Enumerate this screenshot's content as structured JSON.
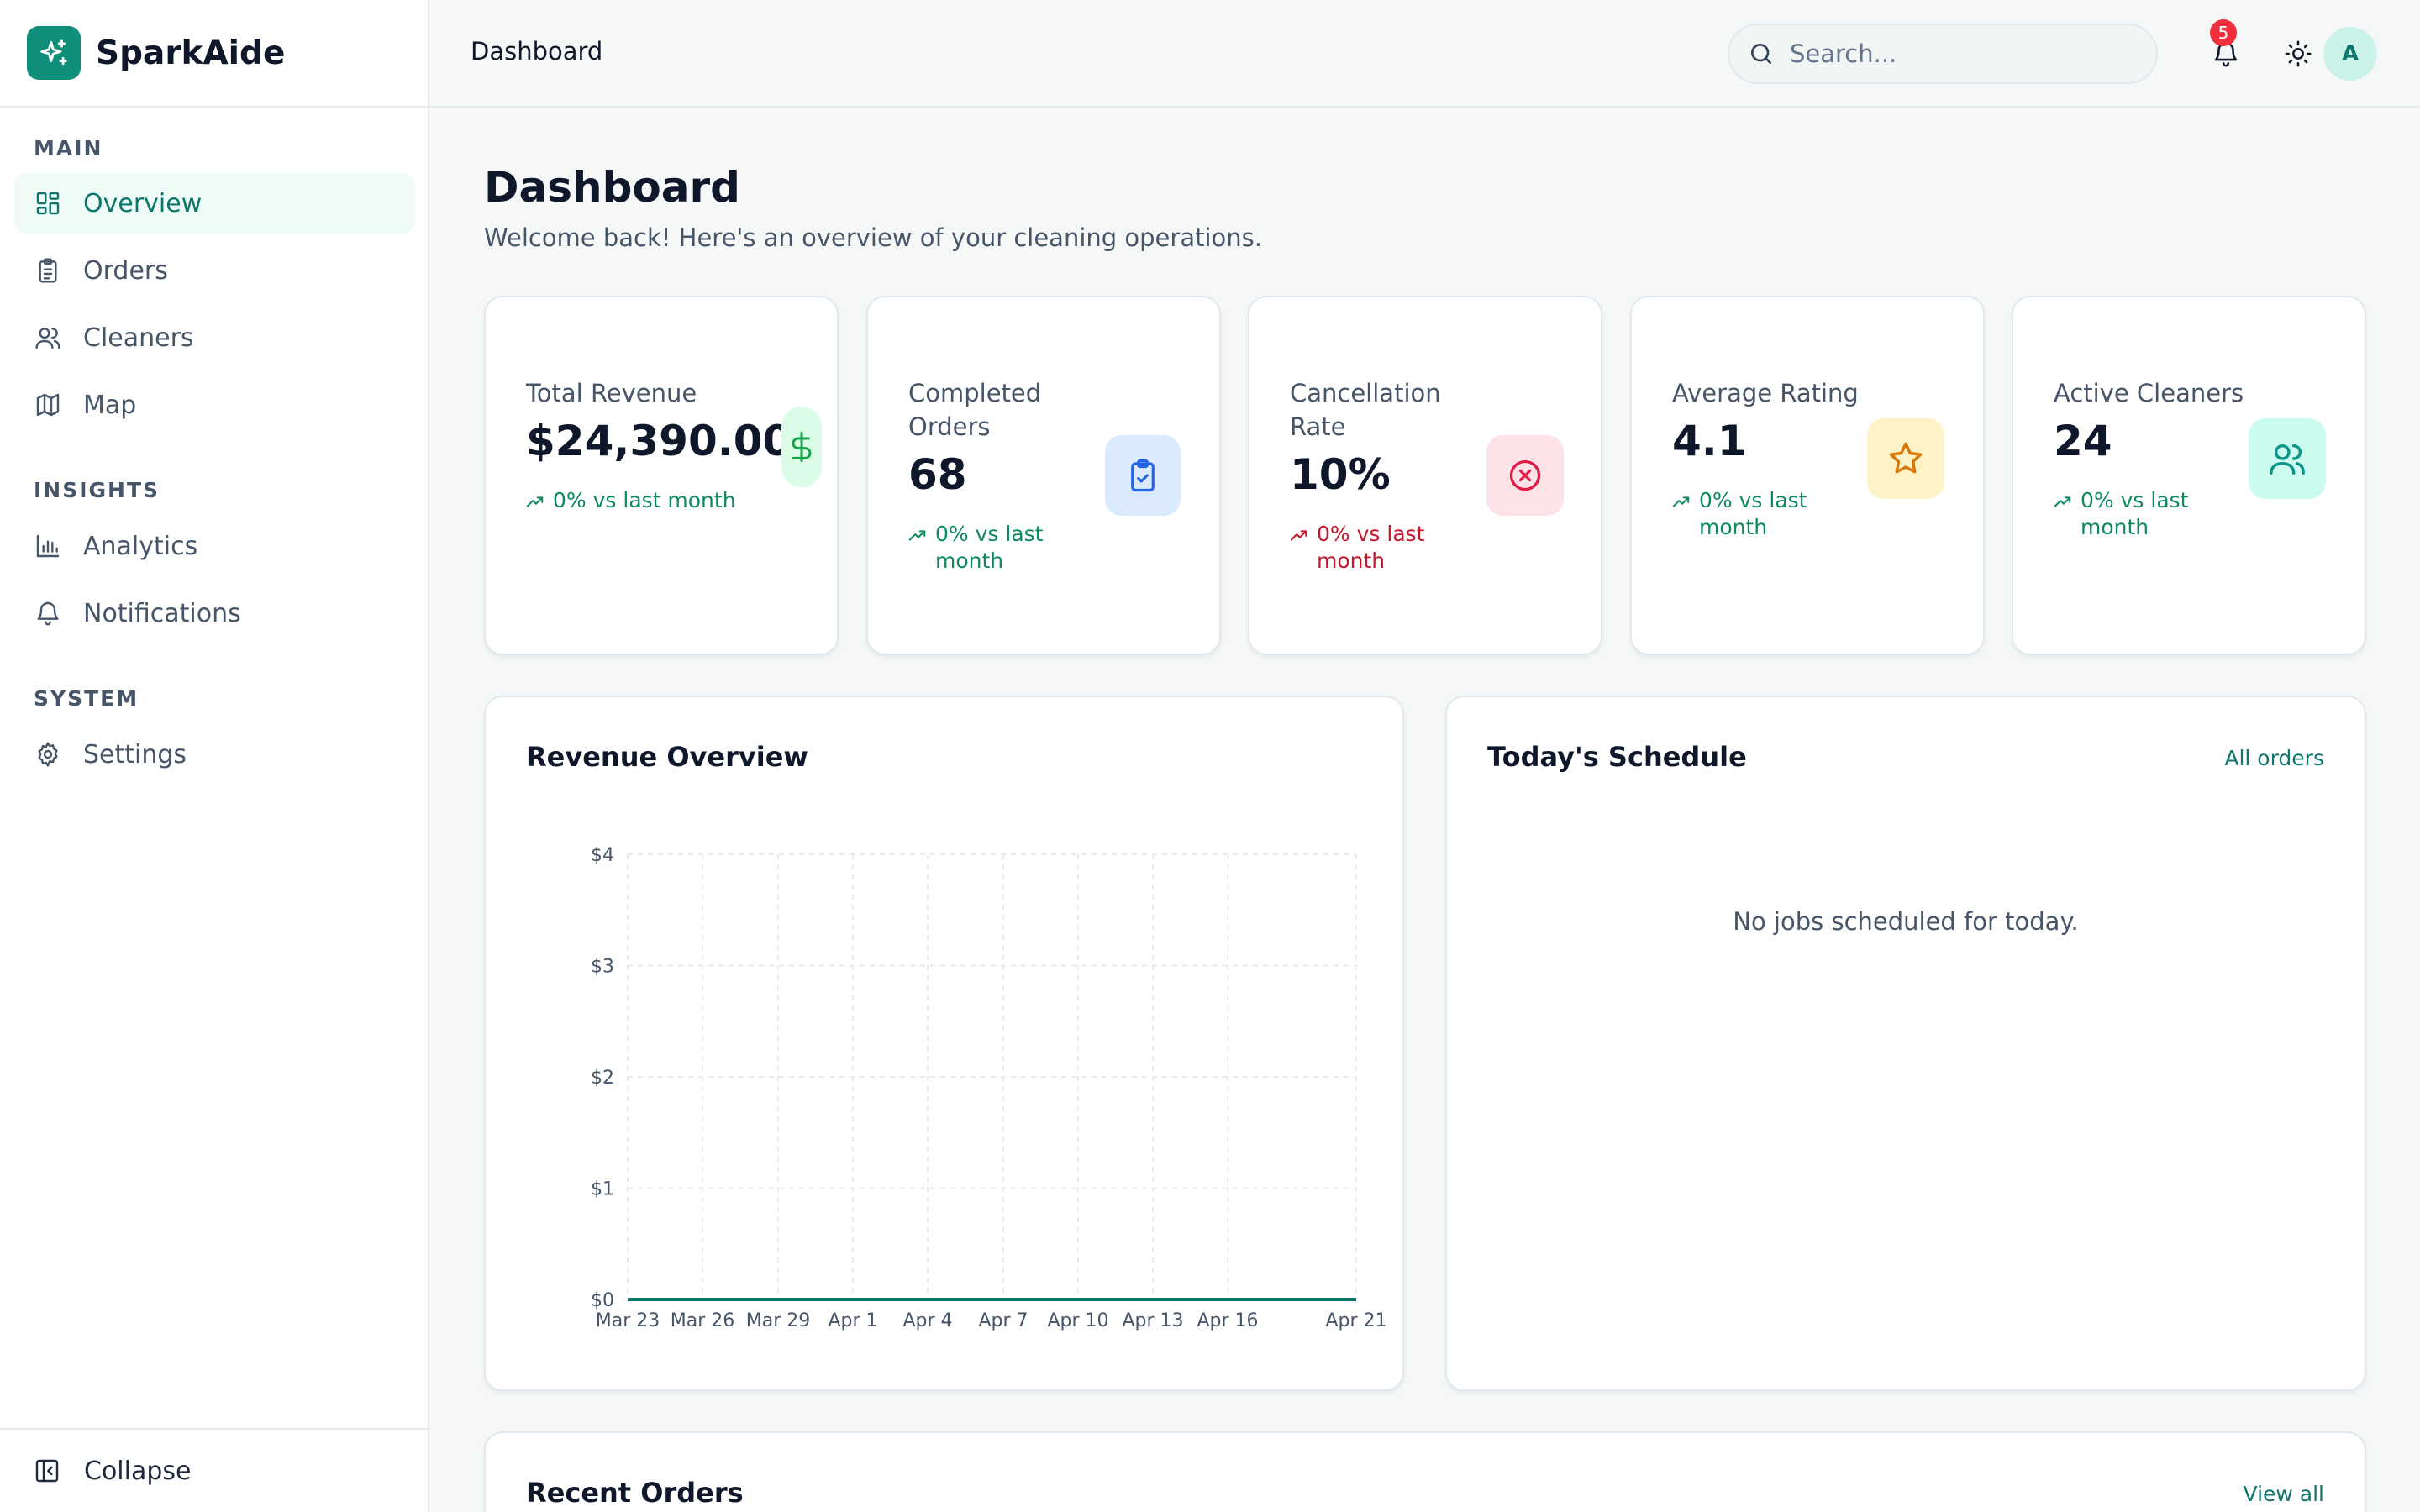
{
  "brand": {
    "name": "SparkAide",
    "logo_icon": "sparkles-icon"
  },
  "sidebar": {
    "sections": [
      {
        "title": "MAIN",
        "items": [
          {
            "label": "Overview",
            "icon": "layout-grid-icon",
            "active": true
          },
          {
            "label": "Orders",
            "icon": "clipboard-icon"
          },
          {
            "label": "Cleaners",
            "icon": "users-icon"
          },
          {
            "label": "Map",
            "icon": "map-icon"
          }
        ]
      },
      {
        "title": "INSIGHTS",
        "items": [
          {
            "label": "Analytics",
            "icon": "bar-chart-icon"
          },
          {
            "label": "Notifications",
            "icon": "bell-icon"
          }
        ]
      },
      {
        "title": "SYSTEM",
        "items": [
          {
            "label": "Settings",
            "icon": "gear-icon"
          }
        ]
      }
    ],
    "collapse_label": "Collapse"
  },
  "header": {
    "title": "Dashboard",
    "search_placeholder": "Search...",
    "notification_count": "5",
    "avatar_initial": "A"
  },
  "page": {
    "title": "Dashboard",
    "subtitle": "Welcome back! Here's an overview of your cleaning operations."
  },
  "stats": [
    {
      "label": "Total Revenue",
      "value": "$24,390.00",
      "trend": "0% vs last month",
      "trend_color": "#0d8a5e",
      "icon": "dollar-icon",
      "icon_bg": "#dcfce7",
      "icon_color": "#16a34a"
    },
    {
      "label": "Completed Orders",
      "value": "68",
      "trend": "0% vs last month",
      "trend_color": "#0d8a5e",
      "icon": "clipboard-check-icon",
      "icon_bg": "#dbeafe",
      "icon_color": "#2563eb"
    },
    {
      "label": "Cancellation Rate",
      "value": "10%",
      "trend": "0% vs last month",
      "trend_color": "#c6162b",
      "icon": "x-circle-icon",
      "icon_bg": "#fde2e7",
      "icon_color": "#e11d48"
    },
    {
      "label": "Average Rating",
      "value": "4.1",
      "trend": "0% vs last month",
      "trend_color": "#0d8a5e",
      "icon": "star-icon",
      "icon_bg": "#fef3c7",
      "icon_color": "#d97706"
    },
    {
      "label": "Active Cleaners",
      "value": "24",
      "trend": "0% vs last month",
      "trend_color": "#0d8a5e",
      "icon": "users-icon",
      "icon_bg": "#ccfbef",
      "icon_color": "#0d9488"
    }
  ],
  "revenue_panel": {
    "title": "Revenue Overview"
  },
  "schedule_panel": {
    "title": "Today's Schedule",
    "link": "All orders",
    "empty": "No jobs scheduled for today."
  },
  "orders_panel": {
    "title": "Recent Orders",
    "link": "View all"
  },
  "chart_data": {
    "type": "line",
    "x_ticks": [
      "Mar 23",
      "Mar 26",
      "Mar 29",
      "Apr 1",
      "Apr 4",
      "Apr 7",
      "Apr 10",
      "Apr 13",
      "Apr 16",
      "Apr 21"
    ],
    "y_ticks": [
      "$0",
      "$1",
      "$2",
      "$3",
      "$4"
    ],
    "ylim": [
      0,
      4
    ],
    "series": [
      {
        "values": [
          0,
          0,
          0,
          0,
          0,
          0,
          0,
          0,
          0,
          0
        ],
        "color": "#0f766e"
      }
    ],
    "grid": true
  }
}
